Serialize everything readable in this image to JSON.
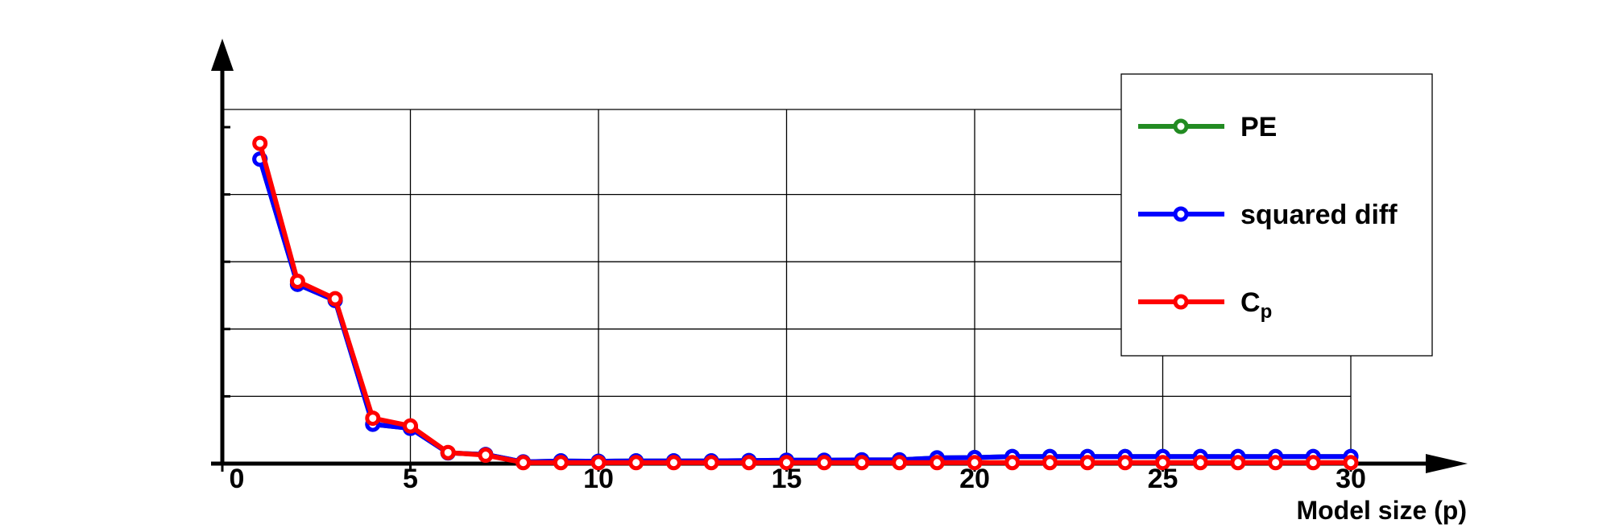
{
  "chart_data": {
    "type": "line",
    "title": "",
    "xlabel": "Model size (p)",
    "ylabel": "",
    "xlim": [
      -0.3,
      32
    ],
    "ylim": [
      0,
      1.05
    ],
    "grid": true,
    "legend_position": "top-right",
    "x_ticks": [
      "0",
      "5",
      "10",
      "15",
      "20",
      "25",
      "30"
    ],
    "x": [
      1,
      2,
      3,
      4,
      5,
      6,
      7,
      8,
      9,
      10,
      11,
      12,
      13,
      14,
      15,
      16,
      17,
      18,
      19,
      20,
      21,
      22,
      23,
      24,
      25,
      26,
      27,
      28,
      29,
      30
    ],
    "series": [
      {
        "name": "PE",
        "color": "#228B22",
        "values": [
          0.905,
          0.533,
          0.485,
          0.117,
          0.105,
          0.032,
          0.027,
          0.005,
          0.008,
          0.007,
          0.008,
          0.008,
          0.008,
          0.009,
          0.01,
          0.01,
          0.011,
          0.011,
          0.017,
          0.018,
          0.021,
          0.021,
          0.021,
          0.021,
          0.021,
          0.021,
          0.021,
          0.021,
          0.021,
          0.021
        ]
      },
      {
        "name": "squared diff",
        "color": "#0000FF",
        "values": [
          0.905,
          0.533,
          0.485,
          0.117,
          0.105,
          0.032,
          0.027,
          0.005,
          0.008,
          0.007,
          0.008,
          0.008,
          0.008,
          0.009,
          0.01,
          0.01,
          0.011,
          0.011,
          0.017,
          0.018,
          0.021,
          0.021,
          0.021,
          0.021,
          0.021,
          0.021,
          0.021,
          0.021,
          0.021,
          0.021
        ]
      },
      {
        "name": "C",
        "name_subscript": "p",
        "color": "#FF0000",
        "values": [
          0.952,
          0.542,
          0.49,
          0.135,
          0.112,
          0.033,
          0.025,
          0.003,
          0.003,
          0.003,
          0.003,
          0.003,
          0.003,
          0.003,
          0.003,
          0.003,
          0.003,
          0.003,
          0.003,
          0.003,
          0.003,
          0.003,
          0.003,
          0.003,
          0.003,
          0.003,
          0.003,
          0.003,
          0.003,
          0.003
        ]
      }
    ]
  }
}
